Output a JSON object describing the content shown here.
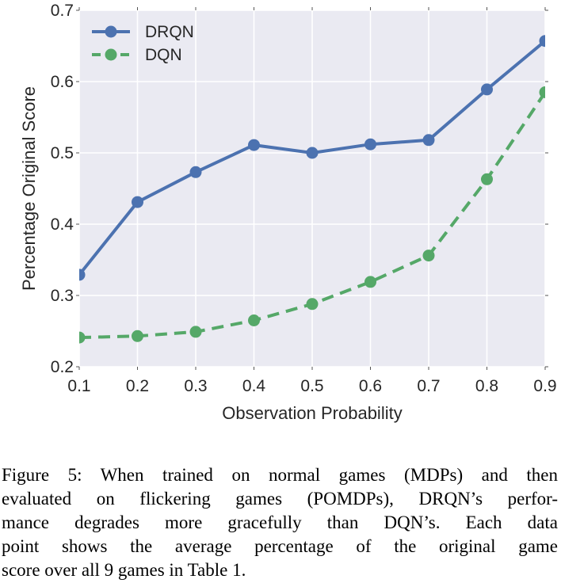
{
  "chart_data": {
    "type": "line",
    "title": "",
    "xlabel": "Observation Probability",
    "ylabel": "Percentage Original Score",
    "x": [
      0.1,
      0.2,
      0.3,
      0.4,
      0.5,
      0.6,
      0.7,
      0.8,
      0.9
    ],
    "series": [
      {
        "name": "DRQN",
        "color": "#4c72b0",
        "style": "solid",
        "marker": "circle",
        "values": [
          0.329,
          0.431,
          0.473,
          0.511,
          0.5,
          0.512,
          0.518,
          0.589,
          0.657
        ]
      },
      {
        "name": "DQN",
        "color": "#55a868",
        "style": "dashed",
        "marker": "circle",
        "values": [
          0.241,
          0.243,
          0.249,
          0.265,
          0.288,
          0.319,
          0.356,
          0.463,
          0.585
        ]
      }
    ],
    "xlim": [
      0.1,
      0.9
    ],
    "ylim": [
      0.2,
      0.7
    ],
    "xticks": [
      "0.1",
      "0.2",
      "0.3",
      "0.4",
      "0.5",
      "0.6",
      "0.7",
      "0.8",
      "0.9"
    ],
    "yticks": [
      "0.2",
      "0.3",
      "0.4",
      "0.5",
      "0.6",
      "0.7"
    ],
    "grid": true,
    "legend_position": "upper left",
    "plot_bg_color": "#eaeaf2",
    "grid_color": "#ffffff",
    "tick_color": "#555555"
  },
  "caption": {
    "lines": [
      "Figure 5: When trained on normal games (MDPs) and then",
      "evaluated on flickering games (POMDPs), DRQN’s perfor-",
      "mance degrades more gracefully than DQN’s. Each data",
      "point shows the average percentage of the original game",
      "score over all 9 games in Table 1."
    ]
  }
}
